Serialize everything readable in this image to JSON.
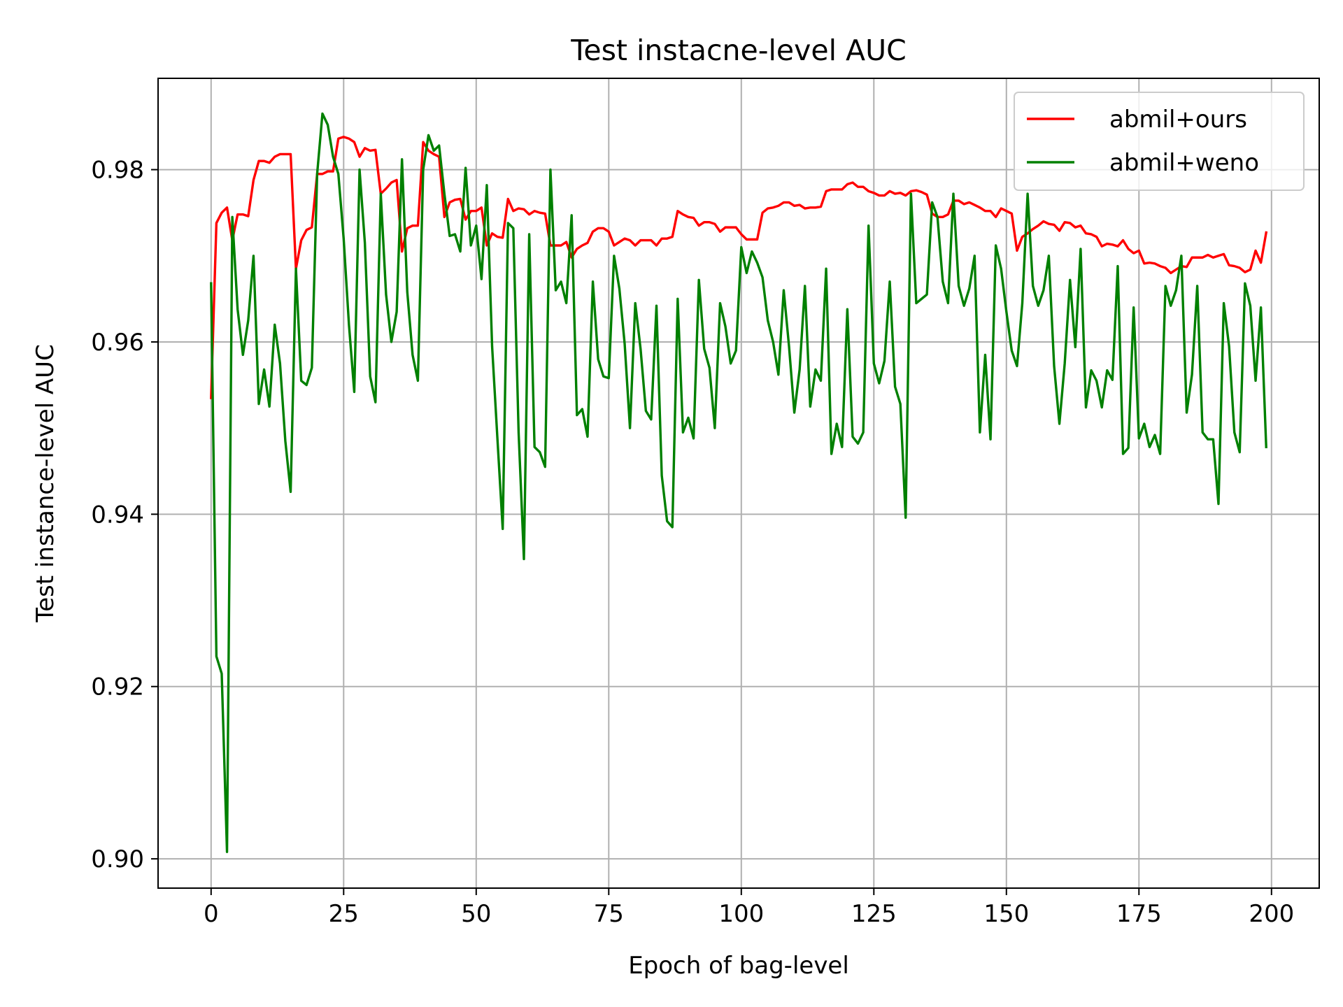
{
  "chart_data": {
    "type": "line",
    "title": "Test instacne-level AUC",
    "xlabel": "Epoch of bag-level",
    "ylabel": "Test instance-level AUC",
    "xlim": [
      -10,
      209
    ],
    "ylim": [
      0.8966,
      0.9906
    ],
    "xticks": [
      0,
      25,
      50,
      75,
      100,
      125,
      150,
      175,
      200
    ],
    "xtick_labels": [
      "0",
      "25",
      "50",
      "75",
      "100",
      "125",
      "150",
      "175",
      "200"
    ],
    "yticks": [
      0.9,
      0.92,
      0.94,
      0.96,
      0.98
    ],
    "ytick_labels": [
      "0.90",
      "0.92",
      "0.94",
      "0.96",
      "0.98"
    ],
    "grid": true,
    "legend_position": "top-right",
    "series": [
      {
        "name": "abmil+ours",
        "color": "#ff0000",
        "x_start": 0,
        "values": [
          0.9535,
          0.9738,
          0.975,
          0.9756,
          0.9718,
          0.9748,
          0.9748,
          0.9746,
          0.9788,
          0.981,
          0.981,
          0.9808,
          0.9815,
          0.9818,
          0.9818,
          0.9818,
          0.9685,
          0.9718,
          0.973,
          0.9733,
          0.9795,
          0.9795,
          0.9798,
          0.9798,
          0.9836,
          0.9838,
          0.9836,
          0.9832,
          0.9815,
          0.9825,
          0.9822,
          0.9823,
          0.9772,
          0.9778,
          0.9785,
          0.9788,
          0.9705,
          0.9732,
          0.9735,
          0.9735,
          0.9832,
          0.9822,
          0.9818,
          0.9815,
          0.9745,
          0.9762,
          0.9765,
          0.9766,
          0.9742,
          0.9752,
          0.9752,
          0.9756,
          0.9712,
          0.9726,
          0.9722,
          0.9721,
          0.9766,
          0.9752,
          0.9755,
          0.9754,
          0.9748,
          0.9752,
          0.975,
          0.9749,
          0.9712,
          0.9712,
          0.9712,
          0.9716,
          0.9698,
          0.9708,
          0.9712,
          0.9715,
          0.9728,
          0.9732,
          0.9732,
          0.9728,
          0.9712,
          0.9716,
          0.972,
          0.9718,
          0.9712,
          0.9718,
          0.9718,
          0.9718,
          0.9712,
          0.972,
          0.972,
          0.9722,
          0.9752,
          0.9748,
          0.9745,
          0.9744,
          0.9735,
          0.9739,
          0.9739,
          0.9737,
          0.9728,
          0.9733,
          0.9733,
          0.9733,
          0.9725,
          0.9719,
          0.9719,
          0.9719,
          0.975,
          0.9755,
          0.9756,
          0.9758,
          0.9762,
          0.9762,
          0.9758,
          0.9759,
          0.9755,
          0.9756,
          0.9756,
          0.9757,
          0.9775,
          0.9777,
          0.9777,
          0.9777,
          0.9783,
          0.9785,
          0.978,
          0.978,
          0.9775,
          0.9773,
          0.977,
          0.977,
          0.9775,
          0.9772,
          0.9773,
          0.977,
          0.9775,
          0.9776,
          0.9774,
          0.9771,
          0.9749,
          0.9745,
          0.9745,
          0.9748,
          0.9764,
          0.9764,
          0.976,
          0.9762,
          0.9759,
          0.9756,
          0.9752,
          0.9752,
          0.9745,
          0.9755,
          0.9752,
          0.9749,
          0.9706,
          0.9722,
          0.9726,
          0.9731,
          0.9735,
          0.974,
          0.9737,
          0.9736,
          0.9729,
          0.9739,
          0.9738,
          0.9733,
          0.9735,
          0.9726,
          0.9725,
          0.9722,
          0.9711,
          0.9714,
          0.9713,
          0.9711,
          0.9718,
          0.9708,
          0.9703,
          0.9706,
          0.9691,
          0.9692,
          0.9691,
          0.9688,
          0.9686,
          0.968,
          0.9684,
          0.9688,
          0.9687,
          0.9698,
          0.9698,
          0.9698,
          0.9701,
          0.9698,
          0.97,
          0.9702,
          0.9689,
          0.9688,
          0.9686,
          0.9681,
          0.9684,
          0.9706,
          0.9692,
          0.9727
        ]
      },
      {
        "name": "abmil+weno",
        "color": "#008000",
        "x_start": 0,
        "values": [
          0.9668,
          0.9235,
          0.9215,
          0.9008,
          0.9745,
          0.9638,
          0.9585,
          0.9625,
          0.97,
          0.9528,
          0.9568,
          0.9525,
          0.962,
          0.9575,
          0.9485,
          0.9426,
          0.9685,
          0.9555,
          0.955,
          0.957,
          0.9795,
          0.9865,
          0.9852,
          0.9815,
          0.9795,
          0.972,
          0.962,
          0.9542,
          0.98,
          0.9715,
          0.956,
          0.953,
          0.9772,
          0.9655,
          0.96,
          0.9635,
          0.9812,
          0.9658,
          0.9585,
          0.9555,
          0.98,
          0.984,
          0.9822,
          0.9828,
          0.9772,
          0.9723,
          0.9725,
          0.9705,
          0.9802,
          0.9712,
          0.9735,
          0.9673,
          0.9782,
          0.9595,
          0.9488,
          0.9383,
          0.9738,
          0.9732,
          0.9495,
          0.9348,
          0.9725,
          0.9478,
          0.9472,
          0.9455,
          0.98,
          0.966,
          0.967,
          0.9645,
          0.9747,
          0.9515,
          0.9522,
          0.949,
          0.967,
          0.958,
          0.956,
          0.9558,
          0.97,
          0.9662,
          0.9598,
          0.95,
          0.9645,
          0.9592,
          0.952,
          0.951,
          0.9642,
          0.9445,
          0.9392,
          0.9385,
          0.965,
          0.9495,
          0.9512,
          0.9488,
          0.9672,
          0.9592,
          0.957,
          0.95,
          0.9645,
          0.9618,
          0.9575,
          0.959,
          0.971,
          0.968,
          0.9705,
          0.9692,
          0.9675,
          0.9625,
          0.96,
          0.9562,
          0.966,
          0.9595,
          0.9518,
          0.9568,
          0.9665,
          0.9525,
          0.9568,
          0.9555,
          0.9685,
          0.947,
          0.9505,
          0.9478,
          0.9638,
          0.949,
          0.9482,
          0.9495,
          0.9735,
          0.9575,
          0.9552,
          0.9578,
          0.967,
          0.9548,
          0.9528,
          0.9396,
          0.9772,
          0.9645,
          0.965,
          0.9655,
          0.9762,
          0.9745,
          0.967,
          0.9645,
          0.9772,
          0.9665,
          0.9642,
          0.9662,
          0.97,
          0.9495,
          0.9585,
          0.9487,
          0.9712,
          0.9685,
          0.9635,
          0.959,
          0.9572,
          0.9645,
          0.9772,
          0.9665,
          0.9642,
          0.966,
          0.97,
          0.9572,
          0.9505,
          0.9575,
          0.9672,
          0.9594,
          0.9708,
          0.9524,
          0.9567,
          0.9555,
          0.9524,
          0.9567,
          0.9556,
          0.9688,
          0.947,
          0.9477,
          0.964,
          0.9488,
          0.9505,
          0.9478,
          0.9492,
          0.947,
          0.9665,
          0.9642,
          0.966,
          0.97,
          0.9518,
          0.9562,
          0.9665,
          0.9495,
          0.9487,
          0.9487,
          0.9412,
          0.9645,
          0.9595,
          0.9495,
          0.9472,
          0.9668,
          0.9642,
          0.9555,
          0.964,
          0.9478
        ]
      }
    ]
  }
}
